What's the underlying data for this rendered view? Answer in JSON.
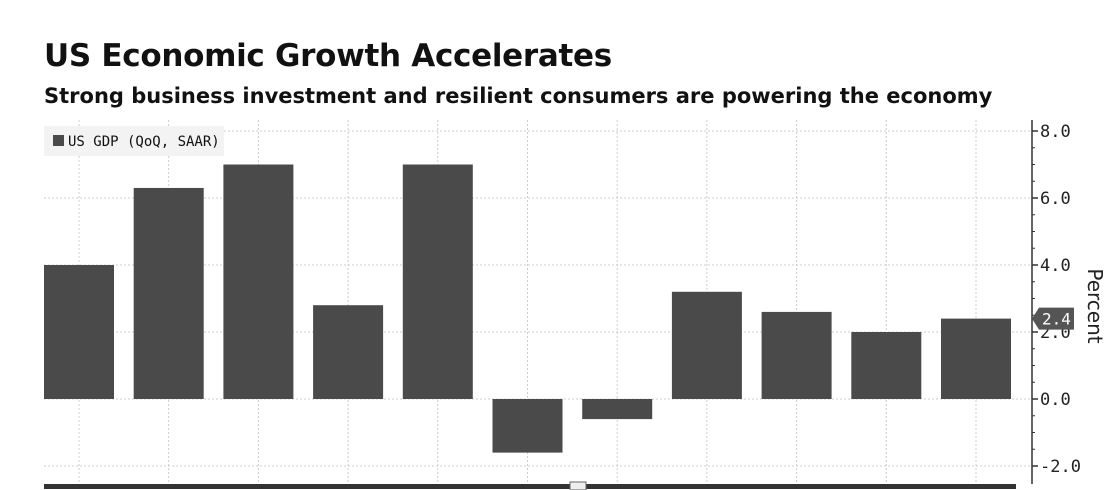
{
  "chart_data": {
    "type": "bar",
    "title": "US Economic Growth Accelerates",
    "subtitle": "Strong business investment and resilient consumers are powering the economy",
    "legend": [
      "US GDP (QoQ, SAAR)"
    ],
    "legend_position": "top-left",
    "ylabel": "Percent",
    "y_axis_side": "right",
    "ylim": [
      -2.0,
      8.0
    ],
    "yticks": [
      "8.0",
      "6.0",
      "4.0",
      "2.0",
      "0.0",
      "-2.0"
    ],
    "series": [
      {
        "name": "US GDP (QoQ, SAAR)",
        "values": [
          4.0,
          6.3,
          7.0,
          2.8,
          7.0,
          -1.6,
          -0.6,
          3.2,
          2.6,
          2.0,
          2.4
        ]
      }
    ],
    "last_value_label": "2.4",
    "grid": true,
    "colors": {
      "bar": "#4a4a4a",
      "grid": "#cccccc",
      "axis": "#333333"
    }
  }
}
